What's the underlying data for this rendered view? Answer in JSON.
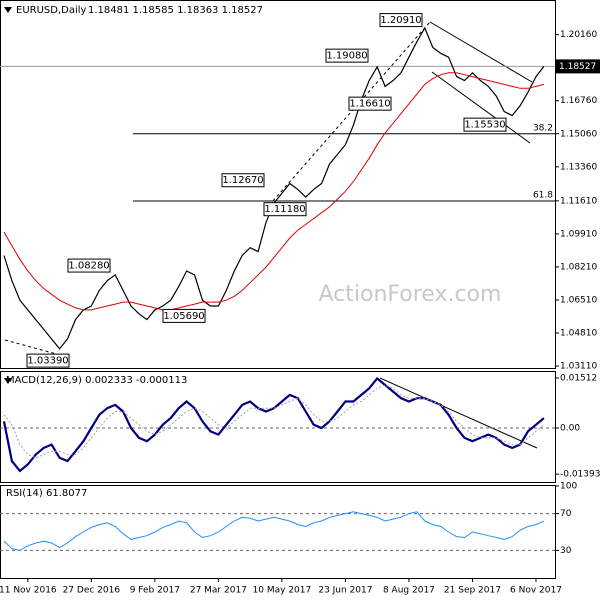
{
  "chart_data": [
    {
      "type": "line",
      "title": "EURUSD,Daily",
      "subtitle": "1.18481 1.18585 1.18363 1.18527",
      "watermark": "ActionForex.com",
      "categories": [
        null,
        null,
        null,
        "11 Nov 2016",
        null,
        null,
        null,
        null,
        null,
        null,
        null,
        "27 Dec 2016",
        null,
        null,
        null,
        null,
        null,
        null,
        null,
        "9 Feb 2017",
        null,
        null,
        null,
        null,
        null,
        null,
        null,
        "27 Mar 2017",
        null,
        null,
        null,
        null,
        null,
        null,
        null,
        "10 May 2017",
        null,
        null,
        null,
        null,
        null,
        null,
        null,
        "23 Jun 2017",
        null,
        null,
        null,
        null,
        null,
        null,
        null,
        "8 Aug 2017",
        null,
        null,
        null,
        null,
        null,
        null,
        null,
        "21 Sep 2017",
        null,
        null,
        null,
        null,
        null,
        null,
        null,
        "6 Nov 2017",
        null
      ],
      "series": [
        {
          "color": "#000000",
          "values": [
            1.088,
            1.075,
            1.065,
            1.06,
            1.055,
            1.05,
            1.045,
            1.04,
            1.045,
            1.055,
            1.06,
            1.062,
            1.07,
            1.075,
            1.078,
            1.07,
            1.062,
            1.058,
            1.055,
            1.06,
            1.062,
            1.065,
            1.072,
            1.08,
            1.078,
            1.065,
            1.062,
            1.062,
            1.07,
            1.08,
            1.088,
            1.092,
            1.09,
            1.105,
            1.115,
            1.12,
            1.125,
            1.122,
            1.118,
            1.122,
            1.125,
            1.135,
            1.14,
            1.145,
            1.155,
            1.168,
            1.178,
            1.185,
            1.175,
            1.178,
            1.182,
            1.19,
            1.198,
            1.205,
            1.195,
            1.192,
            1.19,
            1.18,
            1.178,
            1.182,
            1.178,
            1.175,
            1.17,
            1.162,
            1.16,
            1.165,
            1.172,
            1.18,
            1.18527
          ]
        },
        {
          "color": "#e00000",
          "values": [
            1.1,
            1.093,
            1.086,
            1.08,
            1.075,
            1.071,
            1.068,
            1.065,
            1.063,
            1.061,
            1.06,
            1.06,
            1.061,
            1.062,
            1.063,
            1.064,
            1.064,
            1.063,
            1.062,
            1.061,
            1.06,
            1.06,
            1.061,
            1.062,
            1.063,
            1.064,
            1.064,
            1.064,
            1.065,
            1.067,
            1.07,
            1.074,
            1.078,
            1.082,
            1.087,
            1.092,
            1.097,
            1.101,
            1.104,
            1.107,
            1.11,
            1.113,
            1.117,
            1.121,
            1.126,
            1.132,
            1.138,
            1.145,
            1.151,
            1.156,
            1.161,
            1.166,
            1.171,
            1.176,
            1.179,
            1.181,
            1.182,
            1.182,
            1.181,
            1.18,
            1.179,
            1.178,
            1.177,
            1.176,
            1.175,
            1.174,
            1.174,
            1.175,
            1.176
          ]
        }
      ],
      "ylim": [
        1.0301,
        1.2184
      ],
      "yticks": [
        {
          "value": 1.2016,
          "label": "1.20160"
        },
        {
          "value": 1.1676,
          "label": "1.16760"
        },
        {
          "value": 1.1506,
          "label": "1.15060"
        },
        {
          "value": 1.1336,
          "label": "1.13360"
        },
        {
          "value": 1.1161,
          "label": "1.11610"
        },
        {
          "value": 1.0991,
          "label": "1.09910"
        },
        {
          "value": 1.0821,
          "label": "1.08210"
        },
        {
          "value": 1.0651,
          "label": "1.06510"
        },
        {
          "value": 1.0481,
          "label": "1.04810"
        },
        {
          "value": 1.0311,
          "label": "1.03110"
        }
      ],
      "last_price": {
        "value": 1.18527,
        "label": "1.18527"
      },
      "annotations": [
        {
          "value": 1.2091,
          "label": "1.20910"
        },
        {
          "value": 1.1908,
          "label": "1.19080"
        },
        {
          "value": 1.1661,
          "label": "1.16610"
        },
        {
          "value": 1.1553,
          "label": "1.15530"
        },
        {
          "value": 1.1267,
          "label": "1.12670"
        },
        {
          "value": 1.1118,
          "label": "1.11180"
        },
        {
          "value": 1.0828,
          "label": "1.08280"
        },
        {
          "value": 1.0569,
          "label": "1.05690"
        },
        {
          "value": 1.0339,
          "label": "1.03390"
        }
      ],
      "levels": [
        {
          "value": 1.1506,
          "label": "38.2"
        },
        {
          "value": 1.116,
          "label": "61.8"
        }
      ]
    },
    {
      "type": "line",
      "title": "MACD(12,26,9) 0.002333 -0.000113",
      "series": [
        {
          "color": "#000080",
          "values": [
            0.002,
            -0.01,
            -0.013,
            -0.011,
            -0.008,
            -0.006,
            -0.005,
            -0.009,
            -0.01,
            -0.007,
            -0.004,
            0.0,
            0.004,
            0.006,
            0.007,
            0.005,
            0.0,
            -0.003,
            -0.004,
            -0.002,
            0.001,
            0.003,
            0.006,
            0.008,
            0.006,
            0.002,
            -0.001,
            -0.002,
            0.001,
            0.004,
            0.007,
            0.008,
            0.006,
            0.005,
            0.006,
            0.008,
            0.01,
            0.009,
            0.005,
            0.001,
            0.0,
            0.002,
            0.005,
            0.008,
            0.008,
            0.01,
            0.012,
            0.015,
            0.013,
            0.011,
            0.009,
            0.008,
            0.009,
            0.009,
            0.008,
            0.007,
            0.004,
            0.0,
            -0.003,
            -0.004,
            -0.003,
            -0.002,
            -0.003,
            -0.005,
            -0.006,
            -0.005,
            -0.001,
            0.001,
            0.003
          ]
        },
        {
          "color": "#a0a0a0",
          "values": [
            0.004,
            0.001,
            -0.005,
            -0.008,
            -0.009,
            -0.008,
            -0.007,
            -0.007,
            -0.008,
            -0.008,
            -0.006,
            -0.003,
            0.0,
            0.003,
            0.005,
            0.005,
            0.003,
            0.001,
            -0.001,
            -0.002,
            -0.001,
            0.001,
            0.003,
            0.005,
            0.006,
            0.005,
            0.003,
            0.001,
            0.0,
            0.002,
            0.004,
            0.006,
            0.006,
            0.006,
            0.006,
            0.007,
            0.008,
            0.009,
            0.007,
            0.004,
            0.002,
            0.002,
            0.003,
            0.005,
            0.007,
            0.008,
            0.01,
            0.012,
            0.013,
            0.012,
            0.01,
            0.009,
            0.009,
            0.009,
            0.008,
            0.007,
            0.005,
            0.002,
            0.0,
            -0.002,
            -0.003,
            -0.003,
            -0.003,
            -0.004,
            -0.005,
            -0.005,
            -0.003,
            -0.001,
            0.001
          ]
        }
      ],
      "ylim": [
        -0.01632,
        0.01693
      ],
      "yticks": [
        {
          "value": 0.01512,
          "label": "0.01512"
        },
        {
          "value": 0,
          "label": "0.00"
        },
        {
          "value": -0.013938,
          "label": "-0.013938"
        }
      ]
    },
    {
      "type": "line",
      "title": "RSI(14) 61.8077",
      "series": [
        {
          "color": "#1e90ff",
          "values": [
            40,
            32,
            30,
            35,
            38,
            40,
            38,
            33,
            38,
            45,
            50,
            55,
            58,
            60,
            56,
            48,
            42,
            44,
            46,
            50,
            55,
            58,
            62,
            60,
            50,
            44,
            46,
            50,
            56,
            62,
            66,
            65,
            62,
            64,
            66,
            64,
            62,
            58,
            56,
            60,
            62,
            66,
            68,
            70,
            72,
            70,
            68,
            66,
            62,
            64,
            66,
            70,
            72,
            62,
            58,
            56,
            50,
            45,
            44,
            50,
            48,
            46,
            44,
            42,
            45,
            52,
            56,
            58,
            61.8
          ]
        }
      ],
      "ylim": [
        0,
        100
      ],
      "yticks": [
        100,
        70,
        30
      ]
    }
  ]
}
